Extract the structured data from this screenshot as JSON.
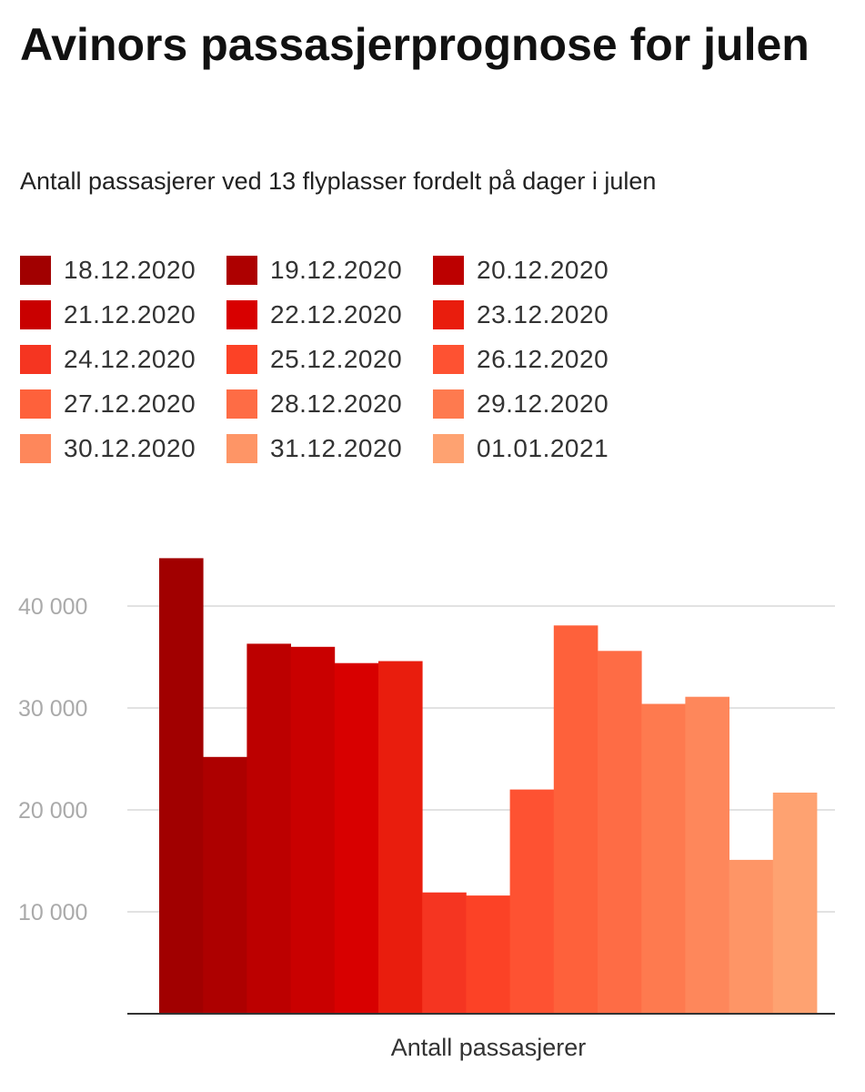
{
  "chart_data": {
    "type": "bar",
    "title": "Avinors passasjerprognose for julen",
    "subtitle": "Antall passasjerer ved 13 flyplasser fordelt på dager i julen",
    "xlabel": "Antall passasjerer",
    "ylabel": "",
    "ylim": [
      0,
      45000
    ],
    "yticks": [
      10000,
      20000,
      30000,
      40000
    ],
    "ytick_labels": [
      "10 000",
      "20 000",
      "30 000",
      "40 000"
    ],
    "grid": true,
    "legend_position": "top",
    "categories": [
      "Antall passasjerer"
    ],
    "series": [
      {
        "name": "18.12.2020",
        "values": [
          44700
        ],
        "color": "#a10000"
      },
      {
        "name": "19.12.2020",
        "values": [
          25200
        ],
        "color": "#ad0000"
      },
      {
        "name": "20.12.2020",
        "values": [
          36300
        ],
        "color": "#bc0000"
      },
      {
        "name": "21.12.2020",
        "values": [
          36000
        ],
        "color": "#c90000"
      },
      {
        "name": "22.12.2020",
        "values": [
          34400
        ],
        "color": "#d80000"
      },
      {
        "name": "23.12.2020",
        "values": [
          34600
        ],
        "color": "#e91d0d"
      },
      {
        "name": "24.12.2020",
        "values": [
          11900
        ],
        "color": "#f53521"
      },
      {
        "name": "25.12.2020",
        "values": [
          11600
        ],
        "color": "#fc4226"
      },
      {
        "name": "26.12.2020",
        "values": [
          22000
        ],
        "color": "#fe5232"
      },
      {
        "name": "27.12.2020",
        "values": [
          38100
        ],
        "color": "#fe613b"
      },
      {
        "name": "28.12.2020",
        "values": [
          35600
        ],
        "color": "#fe6c45"
      },
      {
        "name": "29.12.2020",
        "values": [
          30400
        ],
        "color": "#fe7a4f"
      },
      {
        "name": "30.12.2020",
        "values": [
          31100
        ],
        "color": "#fe875b"
      },
      {
        "name": "31.12.2020",
        "values": [
          15100
        ],
        "color": "#fe9566"
      },
      {
        "name": "01.01.2021",
        "values": [
          21700
        ],
        "color": "#fea271"
      }
    ]
  }
}
